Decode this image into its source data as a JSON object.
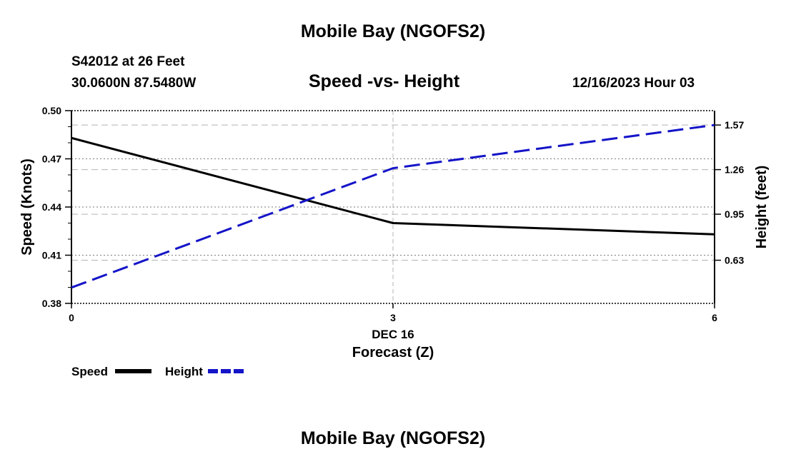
{
  "page": {
    "title": "Mobile Bay (NGOFS2)",
    "station": "S42012 at 26 Feet",
    "coords": "30.0600N  87.5480W",
    "datetime": "12/16/2023 Hour 03",
    "footer_title": "Mobile Bay (NGOFS2)"
  },
  "chart_data": {
    "type": "line",
    "title": "Speed -vs- Height",
    "xlabel": "Forecast (Z)",
    "xlabel_date": "DEC 16",
    "ylabel_left": "Speed (Knots)",
    "ylabel_right": "Height (feet)",
    "x": [
      0,
      3,
      6
    ],
    "x_ticks": [
      0,
      3,
      6
    ],
    "x_tick_labels": [
      "0",
      "3",
      "6"
    ],
    "xlim": [
      0,
      6
    ],
    "y_left_lim": [
      0.38,
      0.5
    ],
    "y_left_ticks": [
      0.38,
      0.41,
      0.44,
      0.47,
      0.5
    ],
    "y_left_tick_labels": [
      "0.38",
      "0.41",
      "0.44",
      "0.47",
      "0.50"
    ],
    "y_right_lim": [
      0.33,
      1.67
    ],
    "y_right_ticks": [
      0.63,
      0.95,
      1.26,
      1.57
    ],
    "y_right_tick_labels": [
      "0.63",
      "0.95",
      "1.26",
      "1.57"
    ],
    "series": [
      {
        "name": "Speed",
        "axis": "left",
        "color": "#000000",
        "style": "solid",
        "values": [
          0.483,
          0.43,
          0.423
        ]
      },
      {
        "name": "Height",
        "axis": "right",
        "color": "#1414c8",
        "style": "dashed",
        "values": [
          0.44,
          1.27,
          1.57
        ]
      }
    ],
    "legend": {
      "placement": "bottom-left",
      "entries": [
        "Speed",
        "Height"
      ]
    },
    "grid": true
  }
}
